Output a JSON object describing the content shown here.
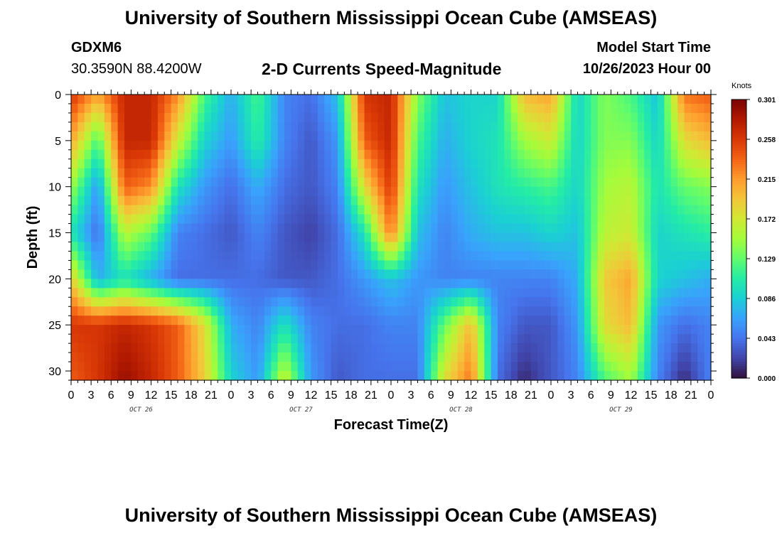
{
  "header": {
    "title": "University of Southern Mississippi Ocean Cube (AMSEAS)",
    "station": "GDXM6",
    "coords": "30.3590N  88.4200W",
    "subtitle": "2-D Currents Speed-Magnitude",
    "start_label": "Model Start Time",
    "start_value": "10/26/2023 Hour 00"
  },
  "footer": {
    "title": "University of Southern Mississippi Ocean Cube (AMSEAS)"
  },
  "chart_data": {
    "type": "heatmap",
    "title": "2-D Currents Speed-Magnitude",
    "xlabel": "Forecast Time(Z)",
    "ylabel": "Depth (ft)",
    "x_hours": [
      0,
      96
    ],
    "x_tick_labels": [
      "0",
      "3",
      "6",
      "9",
      "12",
      "15",
      "18",
      "21",
      "0",
      "3",
      "6",
      "9",
      "12",
      "15",
      "18",
      "21",
      "0",
      "3",
      "6",
      "9",
      "12",
      "15",
      "18",
      "21",
      "0",
      "3",
      "6",
      "9",
      "12",
      "15",
      "18",
      "21",
      "0"
    ],
    "day_labels": [
      "OCT 26",
      "OCT 27",
      "OCT 28",
      "OCT 29"
    ],
    "ylim": [
      0,
      31
    ],
    "y_ticks": [
      0,
      5,
      10,
      15,
      20,
      25,
      30
    ],
    "colorbar": {
      "unit": "Knots",
      "ticks": [
        "0.301",
        "0.258",
        "0.215",
        "0.172",
        "0.129",
        "0.086",
        "0.043",
        "0.000"
      ],
      "min": 0.0,
      "max": 0.301
    },
    "colormap": [
      "#30123b",
      "#4145ab",
      "#4675ed",
      "#39a2fc",
      "#1bcfd4",
      "#24eca6",
      "#61fc6c",
      "#a4fc3b",
      "#d1e834",
      "#f3c63a",
      "#fe9b2d",
      "#f36315",
      "#d93806",
      "#b11901",
      "#7a0403"
    ],
    "grid": false,
    "depths": [
      0,
      5,
      10,
      15,
      20,
      25,
      31
    ],
    "hours": [
      0,
      4,
      8,
      12,
      16,
      20,
      24,
      28,
      32,
      36,
      40,
      44,
      48,
      52,
      56,
      60,
      64,
      68,
      72,
      76,
      80,
      84,
      88,
      92,
      96
    ],
    "speed": [
      [
        0.26,
        0.21,
        0.27,
        0.27,
        0.22,
        0.12,
        0.07,
        0.12,
        0.05,
        0.04,
        0.08,
        0.26,
        0.27,
        0.14,
        0.08,
        0.09,
        0.09,
        0.2,
        0.21,
        0.09,
        0.14,
        0.12,
        0.08,
        0.23,
        0.24
      ],
      [
        0.21,
        0.12,
        0.27,
        0.27,
        0.17,
        0.09,
        0.06,
        0.11,
        0.05,
        0.03,
        0.06,
        0.24,
        0.27,
        0.12,
        0.07,
        0.09,
        0.1,
        0.15,
        0.17,
        0.09,
        0.14,
        0.14,
        0.09,
        0.18,
        0.2
      ],
      [
        0.15,
        0.06,
        0.24,
        0.22,
        0.1,
        0.06,
        0.04,
        0.07,
        0.04,
        0.03,
        0.05,
        0.18,
        0.26,
        0.1,
        0.06,
        0.08,
        0.1,
        0.11,
        0.12,
        0.09,
        0.15,
        0.16,
        0.1,
        0.13,
        0.14
      ],
      [
        0.1,
        0.04,
        0.16,
        0.13,
        0.05,
        0.04,
        0.03,
        0.05,
        0.03,
        0.02,
        0.04,
        0.1,
        0.23,
        0.08,
        0.05,
        0.07,
        0.08,
        0.08,
        0.09,
        0.08,
        0.16,
        0.17,
        0.09,
        0.1,
        0.11
      ],
      [
        0.19,
        0.07,
        0.1,
        0.07,
        0.04,
        0.04,
        0.04,
        0.04,
        0.03,
        0.03,
        0.04,
        0.06,
        0.08,
        0.06,
        0.05,
        0.05,
        0.05,
        0.05,
        0.05,
        0.07,
        0.19,
        0.21,
        0.09,
        0.08,
        0.07
      ],
      [
        0.26,
        0.26,
        0.27,
        0.26,
        0.24,
        0.18,
        0.07,
        0.05,
        0.1,
        0.05,
        0.04,
        0.04,
        0.05,
        0.05,
        0.13,
        0.2,
        0.05,
        0.03,
        0.03,
        0.06,
        0.18,
        0.2,
        0.06,
        0.04,
        0.05
      ],
      [
        0.24,
        0.26,
        0.29,
        0.27,
        0.24,
        0.19,
        0.09,
        0.06,
        0.17,
        0.06,
        0.03,
        0.04,
        0.04,
        0.04,
        0.18,
        0.23,
        0.04,
        0.01,
        0.03,
        0.05,
        0.12,
        0.15,
        0.05,
        0.01,
        0.05
      ]
    ]
  }
}
